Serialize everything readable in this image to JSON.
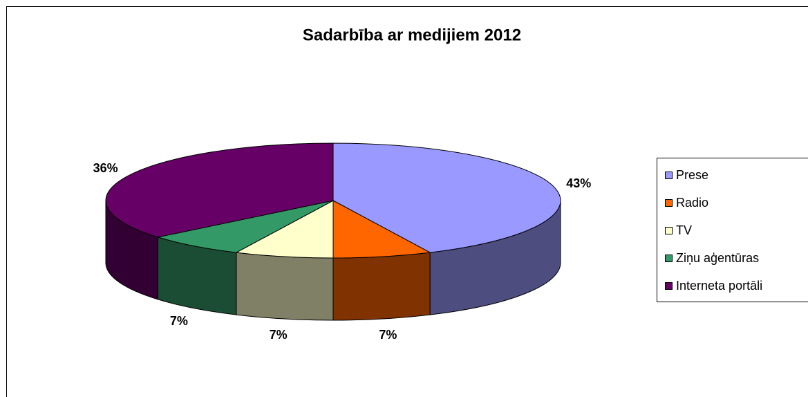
{
  "chart_data": {
    "type": "pie",
    "title": "Sadarbība ar medijiem 2012",
    "categories": [
      "Prese",
      "Radio",
      "TV",
      "Ziņu aģentūras",
      "Interneta portāli"
    ],
    "values": [
      43,
      7,
      7,
      7,
      36
    ],
    "value_labels": [
      "43%",
      "7%",
      "7%",
      "7%",
      "36%"
    ],
    "colors": [
      "#9999ff",
      "#ff6600",
      "#ffffcc",
      "#339966",
      "#660066"
    ],
    "legend": "right"
  }
}
